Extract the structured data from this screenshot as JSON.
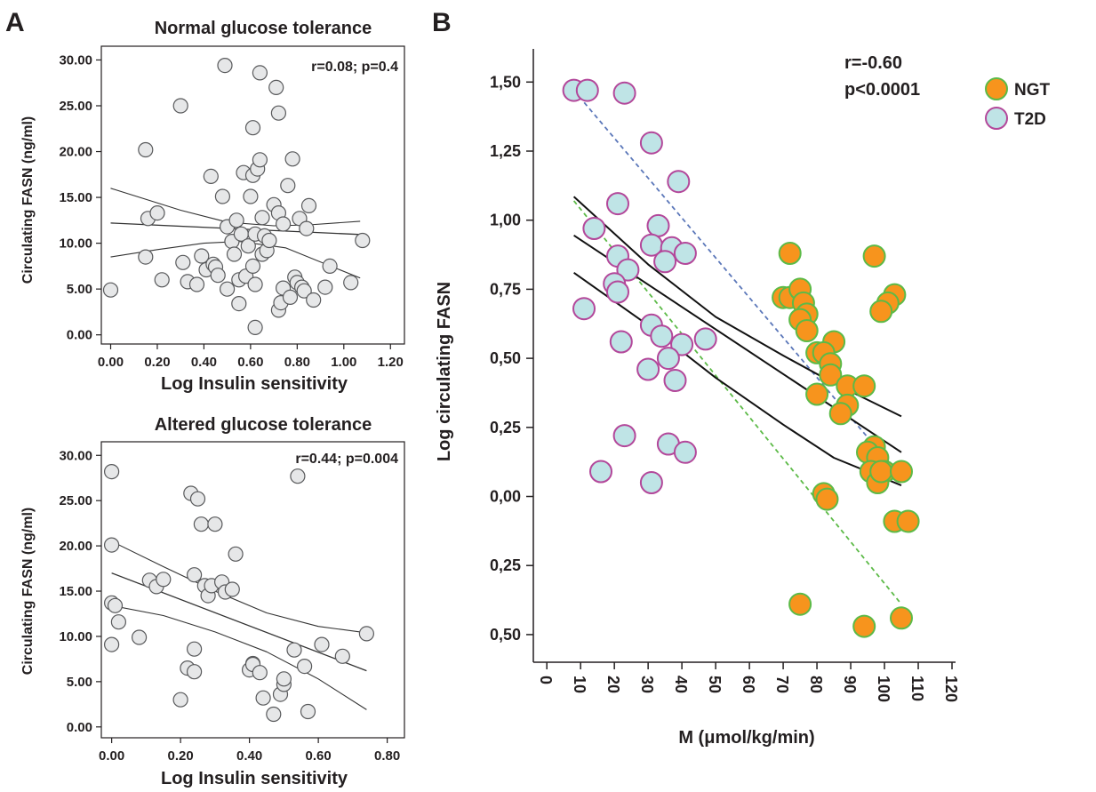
{
  "figure": {
    "panel_a_label": "A",
    "panel_b_label": "B"
  },
  "chart_data": [
    {
      "id": "a_top",
      "type": "scatter",
      "title": "Normal glucose tolerance",
      "xlabel": "Log Insulin sensitivity",
      "ylabel": "Circulating FASN (ng/ml)",
      "annotation": "r=0.08; p=0.4",
      "xlim": [
        -0.04,
        1.26
      ],
      "ylim": [
        -1.0,
        31.5
      ],
      "xticks": [
        {
          "v": 0.0,
          "label": "0.00"
        },
        {
          "v": 0.2,
          "label": "0.20"
        },
        {
          "v": 0.4,
          "label": "0.40"
        },
        {
          "v": 0.6,
          "label": "0.60"
        },
        {
          "v": 0.8,
          "label": "0.80"
        },
        {
          "v": 1.0,
          "label": "1.00"
        },
        {
          "v": 1.2,
          "label": "1.20"
        }
      ],
      "yticks": [
        {
          "v": 0,
          "label": "0.00"
        },
        {
          "v": 5,
          "label": "5.00"
        },
        {
          "v": 10,
          "label": "10.00"
        },
        {
          "v": 15,
          "label": "15.00"
        },
        {
          "v": 20,
          "label": "20.00"
        },
        {
          "v": 25,
          "label": "25.00"
        },
        {
          "v": 30,
          "label": "30.00"
        }
      ],
      "points": [
        [
          0.0,
          4.9
        ],
        [
          0.15,
          20.2
        ],
        [
          0.16,
          12.7
        ],
        [
          0.15,
          8.5
        ],
        [
          0.2,
          13.3
        ],
        [
          0.22,
          6.0
        ],
        [
          0.3,
          25.0
        ],
        [
          0.31,
          7.9
        ],
        [
          0.33,
          5.8
        ],
        [
          0.37,
          5.5
        ],
        [
          0.39,
          8.6
        ],
        [
          0.41,
          7.1
        ],
        [
          0.43,
          17.3
        ],
        [
          0.44,
          7.7
        ],
        [
          0.45,
          7.4
        ],
        [
          0.46,
          6.5
        ],
        [
          0.48,
          15.1
        ],
        [
          0.49,
          29.4
        ],
        [
          0.5,
          5.0
        ],
        [
          0.5,
          11.8
        ],
        [
          0.52,
          10.2
        ],
        [
          0.53,
          8.8
        ],
        [
          0.54,
          12.5
        ],
        [
          0.55,
          6.0
        ],
        [
          0.55,
          3.4
        ],
        [
          0.56,
          11.0
        ],
        [
          0.57,
          17.7
        ],
        [
          0.58,
          6.4
        ],
        [
          0.59,
          9.7
        ],
        [
          0.6,
          15.1
        ],
        [
          0.61,
          22.6
        ],
        [
          0.61,
          17.4
        ],
        [
          0.61,
          7.5
        ],
        [
          0.62,
          5.5
        ],
        [
          0.62,
          11.0
        ],
        [
          0.63,
          18.1
        ],
        [
          0.64,
          28.6
        ],
        [
          0.64,
          19.1
        ],
        [
          0.65,
          12.8
        ],
        [
          0.65,
          8.8
        ],
        [
          0.66,
          10.8
        ],
        [
          0.67,
          9.2
        ],
        [
          0.68,
          10.3
        ],
        [
          0.62,
          0.8
        ],
        [
          0.7,
          14.2
        ],
        [
          0.71,
          27.0
        ],
        [
          0.72,
          24.2
        ],
        [
          0.72,
          13.3
        ],
        [
          0.72,
          2.7
        ],
        [
          0.73,
          3.5
        ],
        [
          0.74,
          12.1
        ],
        [
          0.74,
          5.1
        ],
        [
          0.76,
          16.3
        ],
        [
          0.77,
          4.1
        ],
        [
          0.78,
          19.2
        ],
        [
          0.79,
          6.3
        ],
        [
          0.8,
          5.7
        ],
        [
          0.81,
          12.7
        ],
        [
          0.82,
          5.2
        ],
        [
          0.83,
          4.8
        ],
        [
          0.84,
          11.6
        ],
        [
          0.85,
          14.1
        ],
        [
          0.87,
          3.8
        ],
        [
          0.92,
          5.2
        ],
        [
          0.94,
          7.5
        ],
        [
          1.03,
          5.7
        ],
        [
          1.08,
          10.3
        ]
      ],
      "fit_mean": {
        "x": [
          0.0,
          1.07
        ],
        "y": [
          12.2,
          10.95
        ]
      },
      "ci_upper": {
        "x": [
          0.0,
          0.3,
          0.5,
          0.7,
          0.85,
          1.07
        ],
        "y": [
          16.0,
          13.6,
          12.3,
          11.9,
          12.0,
          12.4
        ]
      },
      "ci_lower": {
        "x": [
          0.0,
          0.2,
          0.4,
          0.55,
          0.75,
          1.07
        ],
        "y": [
          8.5,
          9.3,
          10.0,
          10.2,
          9.5,
          6.2
        ]
      }
    },
    {
      "id": "a_bottom",
      "type": "scatter",
      "title": "Altered glucose tolerance",
      "xlabel": "Log Insulin sensitivity",
      "ylabel": "Circulating FASN (ng/ml)",
      "annotation": "r=0.44; p=0.004",
      "xlim": [
        -0.03,
        0.85
      ],
      "ylim": [
        -1.2,
        31.5
      ],
      "xticks": [
        {
          "v": 0.0,
          "label": "0.00"
        },
        {
          "v": 0.2,
          "label": "0.20"
        },
        {
          "v": 0.4,
          "label": "0.40"
        },
        {
          "v": 0.6,
          "label": "0.60"
        },
        {
          "v": 0.8,
          "label": "0.80"
        }
      ],
      "yticks": [
        {
          "v": 0,
          "label": "0.00"
        },
        {
          "v": 5,
          "label": "5.00"
        },
        {
          "v": 10,
          "label": "10.00"
        },
        {
          "v": 15,
          "label": "15.00"
        },
        {
          "v": 20,
          "label": "20.00"
        },
        {
          "v": 25,
          "label": "25.00"
        },
        {
          "v": 30,
          "label": "30.00"
        }
      ],
      "points": [
        [
          0.0,
          28.2
        ],
        [
          0.0,
          20.1
        ],
        [
          0.0,
          13.7
        ],
        [
          0.0,
          9.1
        ],
        [
          0.01,
          13.4
        ],
        [
          0.02,
          11.6
        ],
        [
          0.08,
          9.9
        ],
        [
          0.11,
          16.2
        ],
        [
          0.13,
          15.5
        ],
        [
          0.15,
          16.3
        ],
        [
          0.2,
          3.0
        ],
        [
          0.22,
          6.5
        ],
        [
          0.23,
          25.8
        ],
        [
          0.24,
          16.8
        ],
        [
          0.24,
          8.6
        ],
        [
          0.24,
          6.1
        ],
        [
          0.25,
          25.2
        ],
        [
          0.26,
          22.4
        ],
        [
          0.27,
          15.6
        ],
        [
          0.28,
          14.5
        ],
        [
          0.29,
          15.6
        ],
        [
          0.3,
          22.4
        ],
        [
          0.32,
          16.0
        ],
        [
          0.33,
          14.9
        ],
        [
          0.35,
          15.2
        ],
        [
          0.36,
          19.1
        ],
        [
          0.4,
          6.3
        ],
        [
          0.41,
          7.0
        ],
        [
          0.41,
          6.9
        ],
        [
          0.43,
          6.0
        ],
        [
          0.44,
          3.2
        ],
        [
          0.47,
          1.4
        ],
        [
          0.49,
          3.6
        ],
        [
          0.5,
          4.7
        ],
        [
          0.5,
          5.3
        ],
        [
          0.53,
          8.5
        ],
        [
          0.54,
          27.7
        ],
        [
          0.56,
          6.7
        ],
        [
          0.57,
          1.7
        ],
        [
          0.61,
          9.1
        ],
        [
          0.67,
          7.8
        ],
        [
          0.74,
          10.3
        ]
      ],
      "fit_mean": {
        "x": [
          0.0,
          0.74
        ],
        "y": [
          17.0,
          6.2
        ]
      },
      "ci_upper": {
        "x": [
          0.0,
          0.15,
          0.3,
          0.45,
          0.6,
          0.74
        ],
        "y": [
          20.5,
          17.7,
          15.0,
          12.6,
          11.1,
          10.4
        ]
      },
      "ci_lower": {
        "x": [
          0.0,
          0.15,
          0.3,
          0.45,
          0.6,
          0.74
        ],
        "y": [
          13.4,
          12.3,
          10.5,
          8.3,
          5.3,
          1.9
        ]
      }
    },
    {
      "id": "b",
      "type": "scatter",
      "xlabel": "M (μmol/kg/min)",
      "ylabel": "Log circulating FASN",
      "annotation": [
        "r=-0.60",
        "p<0.0001"
      ],
      "xlim": [
        -4,
        125
      ],
      "ylim": [
        -0.6,
        1.62
      ],
      "xticks": [
        {
          "v": 0,
          "label": "0"
        },
        {
          "v": 10,
          "label": "10"
        },
        {
          "v": 20,
          "label": "20"
        },
        {
          "v": 30,
          "label": "30"
        },
        {
          "v": 40,
          "label": "40"
        },
        {
          "v": 50,
          "label": "50"
        },
        {
          "v": 60,
          "label": "60"
        },
        {
          "v": 70,
          "label": "70"
        },
        {
          "v": 80,
          "label": "80"
        },
        {
          "v": 90,
          "label": "90"
        },
        {
          "v": 100,
          "label": "100"
        },
        {
          "v": 110,
          "label": "110"
        },
        {
          "v": 120,
          "label": "120"
        }
      ],
      "yticks": [
        {
          "v": 1.5,
          "label": "1,50"
        },
        {
          "v": 1.25,
          "label": "1,25"
        },
        {
          "v": 1.0,
          "label": "1,00"
        },
        {
          "v": 0.75,
          "label": "0,75"
        },
        {
          "v": 0.5,
          "label": "0,50"
        },
        {
          "v": 0.25,
          "label": "0,25"
        },
        {
          "v": 0.0,
          "label": "0,00"
        },
        {
          "v": -0.25,
          "label": "0,25"
        },
        {
          "v": -0.5,
          "label": "0,50"
        }
      ],
      "legend": [
        {
          "name": "NGT",
          "fill": "#f7941d",
          "stroke": "#5cba47"
        },
        {
          "name": "T2D",
          "fill": "#bfe4e6",
          "stroke": "#b3479a"
        }
      ],
      "series": [
        {
          "name": "T2D",
          "points": [
            [
              8,
              1.47
            ],
            [
              12,
              1.47
            ],
            [
              23,
              1.46
            ],
            [
              31,
              1.28
            ],
            [
              39,
              1.14
            ],
            [
              21,
              1.06
            ],
            [
              14,
              0.97
            ],
            [
              33,
              0.98
            ],
            [
              31,
              0.91
            ],
            [
              37,
              0.9
            ],
            [
              41,
              0.88
            ],
            [
              21,
              0.87
            ],
            [
              24,
              0.82
            ],
            [
              35,
              0.85
            ],
            [
              20,
              0.77
            ],
            [
              21,
              0.74
            ],
            [
              11,
              0.68
            ],
            [
              31,
              0.62
            ],
            [
              34,
              0.58
            ],
            [
              22,
              0.56
            ],
            [
              40,
              0.55
            ],
            [
              47,
              0.57
            ],
            [
              36,
              0.5
            ],
            [
              30,
              0.46
            ],
            [
              38,
              0.42
            ],
            [
              23,
              0.22
            ],
            [
              36,
              0.19
            ],
            [
              41,
              0.16
            ],
            [
              16,
              0.09
            ],
            [
              31,
              0.05
            ]
          ]
        },
        {
          "name": "NGT",
          "points": [
            [
              72,
              0.88
            ],
            [
              97,
              0.87
            ],
            [
              70,
              0.72
            ],
            [
              72,
              0.72
            ],
            [
              75,
              0.75
            ],
            [
              76,
              0.7
            ],
            [
              77,
              0.66
            ],
            [
              75,
              0.64
            ],
            [
              103,
              0.73
            ],
            [
              101,
              0.7
            ],
            [
              99,
              0.67
            ],
            [
              77,
              0.6
            ],
            [
              85,
              0.56
            ],
            [
              80,
              0.52
            ],
            [
              82,
              0.52
            ],
            [
              84,
              0.48
            ],
            [
              84,
              0.44
            ],
            [
              89,
              0.4
            ],
            [
              94,
              0.4
            ],
            [
              80,
              0.37
            ],
            [
              89,
              0.33
            ],
            [
              87,
              0.3
            ],
            [
              97,
              0.18
            ],
            [
              95,
              0.16
            ],
            [
              98,
              0.14
            ],
            [
              96,
              0.09
            ],
            [
              100,
              0.09
            ],
            [
              98,
              0.05
            ],
            [
              99,
              0.09
            ],
            [
              105,
              0.09
            ],
            [
              82,
              0.01
            ],
            [
              83,
              -0.01
            ],
            [
              103,
              -0.09
            ],
            [
              107,
              -0.09
            ],
            [
              75,
              -0.39
            ],
            [
              94,
              -0.47
            ],
            [
              105,
              -0.44
            ]
          ]
        }
      ],
      "fit_mean": {
        "x": [
          8,
          105
        ],
        "y": [
          0.945,
          0.16
        ]
      },
      "ci_upper": {
        "x": [
          8,
          30,
          50,
          70,
          85,
          105
        ],
        "y": [
          1.085,
          0.84,
          0.65,
          0.51,
          0.41,
          0.29
        ]
      },
      "ci_lower": {
        "x": [
          8,
          30,
          50,
          70,
          85,
          105
        ],
        "y": [
          0.81,
          0.62,
          0.43,
          0.26,
          0.14,
          0.04
        ]
      },
      "fit_t2d": {
        "x": [
          8,
          105
        ],
        "y": [
          1.47,
          0.07
        ]
      },
      "fit_ngt": {
        "x": [
          8,
          105
        ],
        "y": [
          1.07,
          -0.39
        ]
      }
    }
  ]
}
